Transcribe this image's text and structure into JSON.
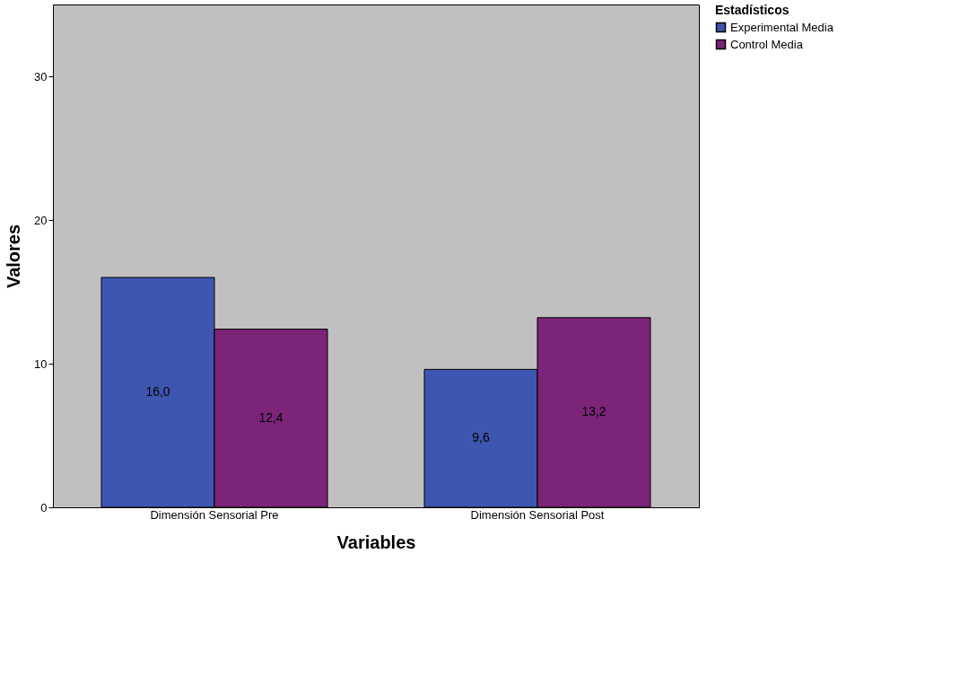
{
  "chart_data": {
    "type": "bar",
    "xlabel": "Variables",
    "ylabel": "Valores",
    "legend_title": "Estadísticos",
    "categories": [
      "Dimensión Sensorial Pre",
      "Dimensión Sensorial Post"
    ],
    "series": [
      {
        "name": "Experimental Media",
        "color": "#3d56b0",
        "values": [
          16.0,
          9.6
        ],
        "value_labels": [
          "16,0",
          "9,6"
        ]
      },
      {
        "name": "Control Media",
        "color": "#7b2478",
        "values": [
          12.4,
          13.2
        ],
        "value_labels": [
          "12,4",
          "13,2"
        ]
      }
    ],
    "ylim": [
      0,
      35
    ],
    "yticks": [
      0,
      10,
      20,
      30
    ],
    "grid": false,
    "legend": "top right"
  }
}
